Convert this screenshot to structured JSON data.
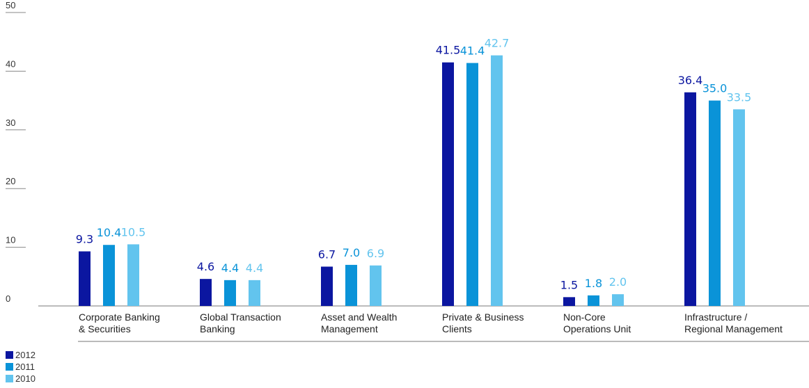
{
  "chart_data": {
    "type": "bar",
    "categories": [
      [
        "Corporate Banking",
        "& Securities"
      ],
      [
        "Global Transaction",
        "Banking"
      ],
      [
        "Asset and Wealth",
        "Management"
      ],
      [
        "Private & Business",
        "Clients"
      ],
      [
        "Non-Core",
        "Operations Unit"
      ],
      [
        "Infrastructure /",
        "Regional Management"
      ]
    ],
    "series": [
      {
        "name": "2012",
        "color": "#0b16a0",
        "values": [
          9.3,
          4.6,
          6.7,
          41.5,
          1.5,
          36.4
        ]
      },
      {
        "name": "2011",
        "color": "#0a93d8",
        "values": [
          10.4,
          4.4,
          7.0,
          41.4,
          1.8,
          35.0
        ]
      },
      {
        "name": "2010",
        "color": "#62c4ee",
        "values": [
          10.5,
          4.4,
          6.9,
          42.7,
          2.0,
          33.5
        ]
      }
    ],
    "y_ticks": [
      0,
      10,
      20,
      30,
      40,
      50
    ],
    "ylim": [
      0,
      50
    ],
    "value_label_decimals": 1,
    "legend_position": "bottom-left",
    "grid": false
  }
}
